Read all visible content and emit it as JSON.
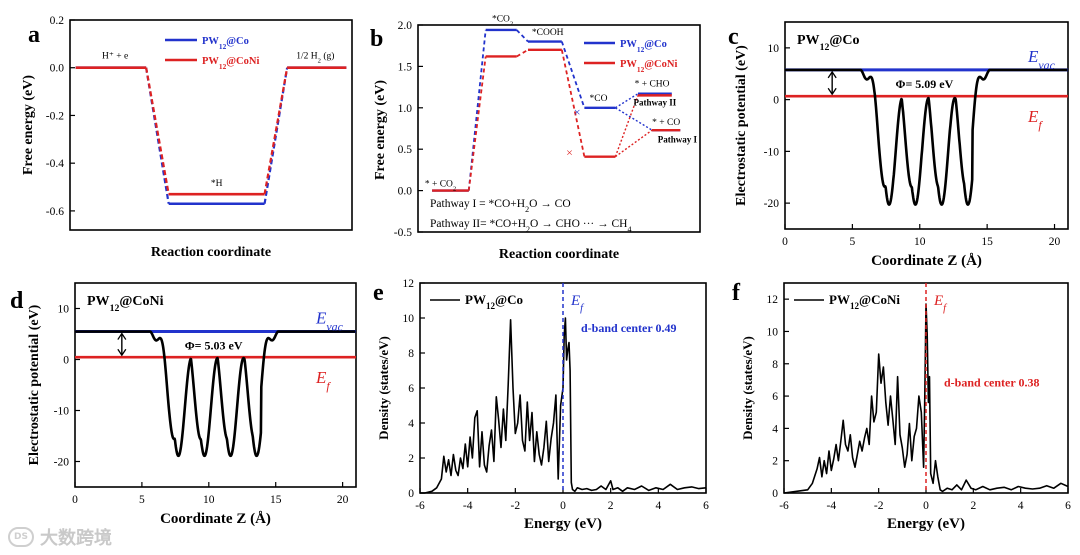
{
  "watermark": {
    "logo_text": "DS",
    "text": "大数跨境"
  },
  "chart_data": [
    {
      "id": "a",
      "type": "line",
      "panel_label": "a",
      "title": "",
      "xlabel": "Reaction coordinate",
      "ylabel": "Free energy (eV)",
      "ylim": [
        -0.68,
        0.2
      ],
      "yticks": [
        0.2,
        0.0,
        -0.2,
        -0.4,
        -0.6
      ],
      "ytick_labels": [
        "0.2",
        "0.0",
        "-0.2",
        "-0.4",
        "-0.6"
      ],
      "xticks_hidden": true,
      "series": [
        {
          "name": "PW12@Co",
          "label_main": "PW",
          "label_sub": "12",
          "label_rest": "@Co",
          "color": "#2233cc",
          "states": [
            0,
            -0.57,
            0
          ]
        },
        {
          "name": "PW12@CoNi",
          "label_main": "PW",
          "label_sub": "12",
          "label_rest": "@CoNi",
          "color": "#dd2222",
          "states": [
            0,
            -0.53,
            0
          ]
        }
      ],
      "state_labels": [
        {
          "text": "H⁺ + e",
          "sub": "",
          "after": ""
        },
        {
          "text": "*H",
          "sub": "",
          "after": ""
        },
        {
          "text": "1/2 H",
          "sub": "2",
          "after": " (g)"
        }
      ]
    },
    {
      "id": "b",
      "type": "line",
      "panel_label": "b",
      "title": "",
      "xlabel": "Reaction coordinate",
      "ylabel": "Free energy (eV)",
      "ylim": [
        -0.5,
        2.0
      ],
      "yticks": [
        2.0,
        1.5,
        1.0,
        0.5,
        0.0,
        -0.5
      ],
      "ytick_labels": [
        "2.0",
        "1.5",
        "1.0",
        "0.5",
        "0.0",
        "-0.5"
      ],
      "series": [
        {
          "name": "PW12@Co",
          "label_main": "PW",
          "label_sub": "12",
          "label_rest": "@Co",
          "color": "#2233cc",
          "states": [
            0,
            1.94,
            1.8,
            1.0
          ],
          "pathway_I": 0.73,
          "pathway_II": 1.17
        },
        {
          "name": "PW12@CoNi",
          "label_main": "PW",
          "label_sub": "12",
          "label_rest": "@CoNi",
          "color": "#dd2222",
          "states": [
            0,
            1.62,
            1.7,
            0.41
          ],
          "pathway_I": 0.73,
          "pathway_II": 1.15
        }
      ],
      "state_labels": [
        {
          "text": "* + CO",
          "sub": "2"
        },
        {
          "text": "*CO",
          "sub": "2"
        },
        {
          "text": "*COOH",
          "sub": ""
        },
        {
          "text": "*CO",
          "sub": ""
        },
        {
          "text": "* + CHO",
          "sub": ""
        },
        {
          "text": "* + CO",
          "sub": ""
        }
      ],
      "pathway_labels": [
        "Pathway II",
        "Pathway I"
      ],
      "annotations": [
        {
          "text": "Pathway I = *CO+H",
          "sub": "2",
          "after": "O → CO",
          "sub2": ""
        },
        {
          "text": "Pathway II= *CO+H",
          "sub": "2",
          "after": "O → CHO ··· → CH",
          "sub2": "4"
        }
      ]
    },
    {
      "id": "c",
      "type": "line",
      "panel_label": "c",
      "title": "PW12@Co",
      "title_main": "PW",
      "title_sub": "12",
      "title_rest": "@Co",
      "xlabel": "Coordinate Z (Å)",
      "ylabel": "Electrostatic potential (eV)",
      "xlim": [
        0,
        21
      ],
      "ylim": [
        -25,
        15
      ],
      "xticks": [
        0,
        5,
        10,
        15,
        20
      ],
      "yticks": [
        10,
        0,
        -10,
        -20
      ],
      "E_vac": 5.75,
      "E_f": 0.66,
      "work_function": "Φ= 5.09 eV",
      "evac_label": "E",
      "evac_sub": "vac",
      "ef_label": "E",
      "ef_sub": "f",
      "well_centers": [
        7.4,
        8.7,
        10.6,
        12.5,
        13.8
      ],
      "well_minimum": -20.3,
      "edges": [
        5.6,
        15.2
      ]
    },
    {
      "id": "d",
      "type": "line",
      "panel_label": "d",
      "title": "PW12@CoNi",
      "title_main": "PW",
      "title_sub": "12",
      "title_rest": "@CoNi",
      "xlabel": "Coordinate Z (Å)",
      "ylabel": "Electrostatic potential (eV)",
      "xlim": [
        0,
        21
      ],
      "ylim": [
        -25,
        15
      ],
      "xticks": [
        0,
        5,
        10,
        15,
        20
      ],
      "yticks": [
        10,
        0,
        -10,
        -20
      ],
      "E_vac": 5.48,
      "E_f": 0.45,
      "work_function": "Φ= 5.03 eV",
      "evac_label": "E",
      "evac_sub": "vac",
      "ef_label": "E",
      "ef_sub": "f",
      "well_centers": [
        7.4,
        8.7,
        10.6,
        12.5,
        13.8
      ],
      "well_minimum": -18.9,
      "edges": [
        5.6,
        15.2
      ]
    },
    {
      "id": "e",
      "type": "line",
      "panel_label": "e",
      "legend": "PW12@Co",
      "legend_main": "PW",
      "legend_sub": "12",
      "legend_rest": "@Co",
      "xlabel": "Energy (eV)",
      "ylabel": "Density (states/eV)",
      "xlim": [
        -6,
        6
      ],
      "ylim": [
        0,
        12
      ],
      "xticks": [
        -6,
        -4,
        -2,
        0,
        2,
        4,
        6
      ],
      "yticks": [
        0,
        2,
        4,
        6,
        8,
        10,
        12
      ],
      "fermi_color": "#2233cc",
      "fermi_label": "E",
      "fermi_sub": "f",
      "dband_text": "d-band center 0.49",
      "dband_color": "#2233cc",
      "x": [
        -6.0,
        -5.8,
        -5.5,
        -5.3,
        -5.1,
        -5.0,
        -4.9,
        -4.8,
        -4.7,
        -4.6,
        -4.5,
        -4.4,
        -4.3,
        -4.2,
        -4.1,
        -4.0,
        -3.9,
        -3.8,
        -3.7,
        -3.6,
        -3.5,
        -3.4,
        -3.3,
        -3.2,
        -3.1,
        -3.0,
        -2.9,
        -2.8,
        -2.7,
        -2.6,
        -2.5,
        -2.4,
        -2.3,
        -2.2,
        -2.1,
        -2.0,
        -1.9,
        -1.8,
        -1.7,
        -1.6,
        -1.5,
        -1.4,
        -1.3,
        -1.2,
        -1.1,
        -1.0,
        -0.9,
        -0.8,
        -0.7,
        -0.6,
        -0.5,
        -0.4,
        -0.3,
        -0.2,
        -0.1,
        0.0,
        0.05,
        0.1,
        0.15,
        0.2,
        0.25,
        0.3,
        0.35,
        0.4,
        0.5,
        0.6,
        0.8,
        1.0,
        1.2,
        1.4,
        1.6,
        1.8,
        2.0,
        2.1,
        2.3,
        2.5,
        2.7,
        3.0,
        3.3,
        3.6,
        3.9,
        4.2,
        4.5,
        4.8,
        5.1,
        5.4,
        5.7,
        6.0
      ],
      "values": [
        0,
        0,
        0.1,
        0.3,
        0.8,
        2.1,
        1.2,
        1.9,
        1.0,
        2.2,
        1.3,
        1.0,
        2.0,
        1.4,
        2.8,
        1.5,
        3.2,
        2.0,
        4.3,
        4.7,
        1.5,
        3.5,
        1.6,
        1.2,
        2.7,
        3.6,
        1.8,
        5.5,
        4.2,
        2.6,
        4.8,
        3.0,
        6.2,
        9.9,
        6.0,
        3.4,
        4.0,
        5.6,
        3.0,
        2.4,
        5.2,
        3.0,
        4.6,
        1.8,
        3.5,
        2.2,
        1.6,
        2.6,
        4.1,
        1.8,
        3.1,
        4.0,
        5.6,
        0.8,
        5.0,
        6.0,
        9.0,
        10.0,
        7.6,
        8.2,
        8.6,
        7.0,
        0.6,
        0.2,
        0.1,
        0.3,
        0.2,
        0.25,
        0.15,
        0.2,
        0.4,
        0.2,
        0.7,
        0.2,
        0.3,
        0.1,
        0.3,
        0.2,
        0.4,
        0.15,
        0.3,
        0.2,
        0.5,
        0.2,
        0.3,
        0.35,
        0.25,
        0.3
      ]
    },
    {
      "id": "f",
      "type": "line",
      "panel_label": "f",
      "legend": "PW12@CoNi",
      "legend_main": "PW",
      "legend_sub": "12",
      "legend_rest": "@CoNi",
      "xlabel": "Energy (eV)",
      "ylabel": "Density (states/eV)",
      "xlim": [
        -6,
        6
      ],
      "ylim": [
        0,
        13
      ],
      "xticks": [
        -6,
        -4,
        -2,
        0,
        2,
        4,
        6
      ],
      "yticks": [
        0,
        2,
        4,
        6,
        8,
        10,
        12
      ],
      "fermi_color": "#dd2222",
      "fermi_label": "E",
      "fermi_sub": "f",
      "dband_text": "d-band center 0.38",
      "dband_color": "#dd2222",
      "x": [
        -6.0,
        -5.5,
        -5.0,
        -4.8,
        -4.6,
        -4.5,
        -4.4,
        -4.3,
        -4.2,
        -4.1,
        -4.0,
        -3.9,
        -3.8,
        -3.7,
        -3.6,
        -3.5,
        -3.4,
        -3.3,
        -3.2,
        -3.1,
        -3.0,
        -2.9,
        -2.8,
        -2.7,
        -2.6,
        -2.5,
        -2.4,
        -2.3,
        -2.2,
        -2.1,
        -2.0,
        -1.9,
        -1.8,
        -1.7,
        -1.6,
        -1.5,
        -1.4,
        -1.3,
        -1.2,
        -1.1,
        -1.0,
        -0.9,
        -0.8,
        -0.7,
        -0.6,
        -0.5,
        -0.4,
        -0.3,
        -0.2,
        -0.1,
        -0.05,
        0.0,
        0.05,
        0.1,
        0.15,
        0.2,
        0.3,
        0.4,
        0.5,
        0.6,
        0.7,
        0.9,
        1.1,
        1.3,
        1.5,
        1.7,
        1.9,
        2.1,
        2.4,
        2.7,
        3.0,
        3.3,
        3.6,
        3.9,
        4.2,
        4.5,
        4.8,
        5.1,
        5.4,
        5.7,
        6.0
      ],
      "values": [
        0,
        0.1,
        0.2,
        0.6,
        1.5,
        2.2,
        1.0,
        2.0,
        1.2,
        2.6,
        1.4,
        2.1,
        3.0,
        2.0,
        3.2,
        4.5,
        3.0,
        2.6,
        3.6,
        2.2,
        1.6,
        2.4,
        3.2,
        2.6,
        3.4,
        4.0,
        3.0,
        6.0,
        4.4,
        5.0,
        8.6,
        6.8,
        7.8,
        5.6,
        4.2,
        6.0,
        4.5,
        3.0,
        7.2,
        3.6,
        2.8,
        1.6,
        2.4,
        4.3,
        2.0,
        3.5,
        4.0,
        6.0,
        5.0,
        1.6,
        6.0,
        11.7,
        9.8,
        5.6,
        7.2,
        1.2,
        0.6,
        2.0,
        1.0,
        0.2,
        0.1,
        0.3,
        0.2,
        0.5,
        0.2,
        0.8,
        0.3,
        0.2,
        0.4,
        0.2,
        0.3,
        0.35,
        0.2,
        0.4,
        0.3,
        0.25,
        0.3,
        0.45,
        0.3,
        0.6,
        0.4
      ]
    }
  ]
}
